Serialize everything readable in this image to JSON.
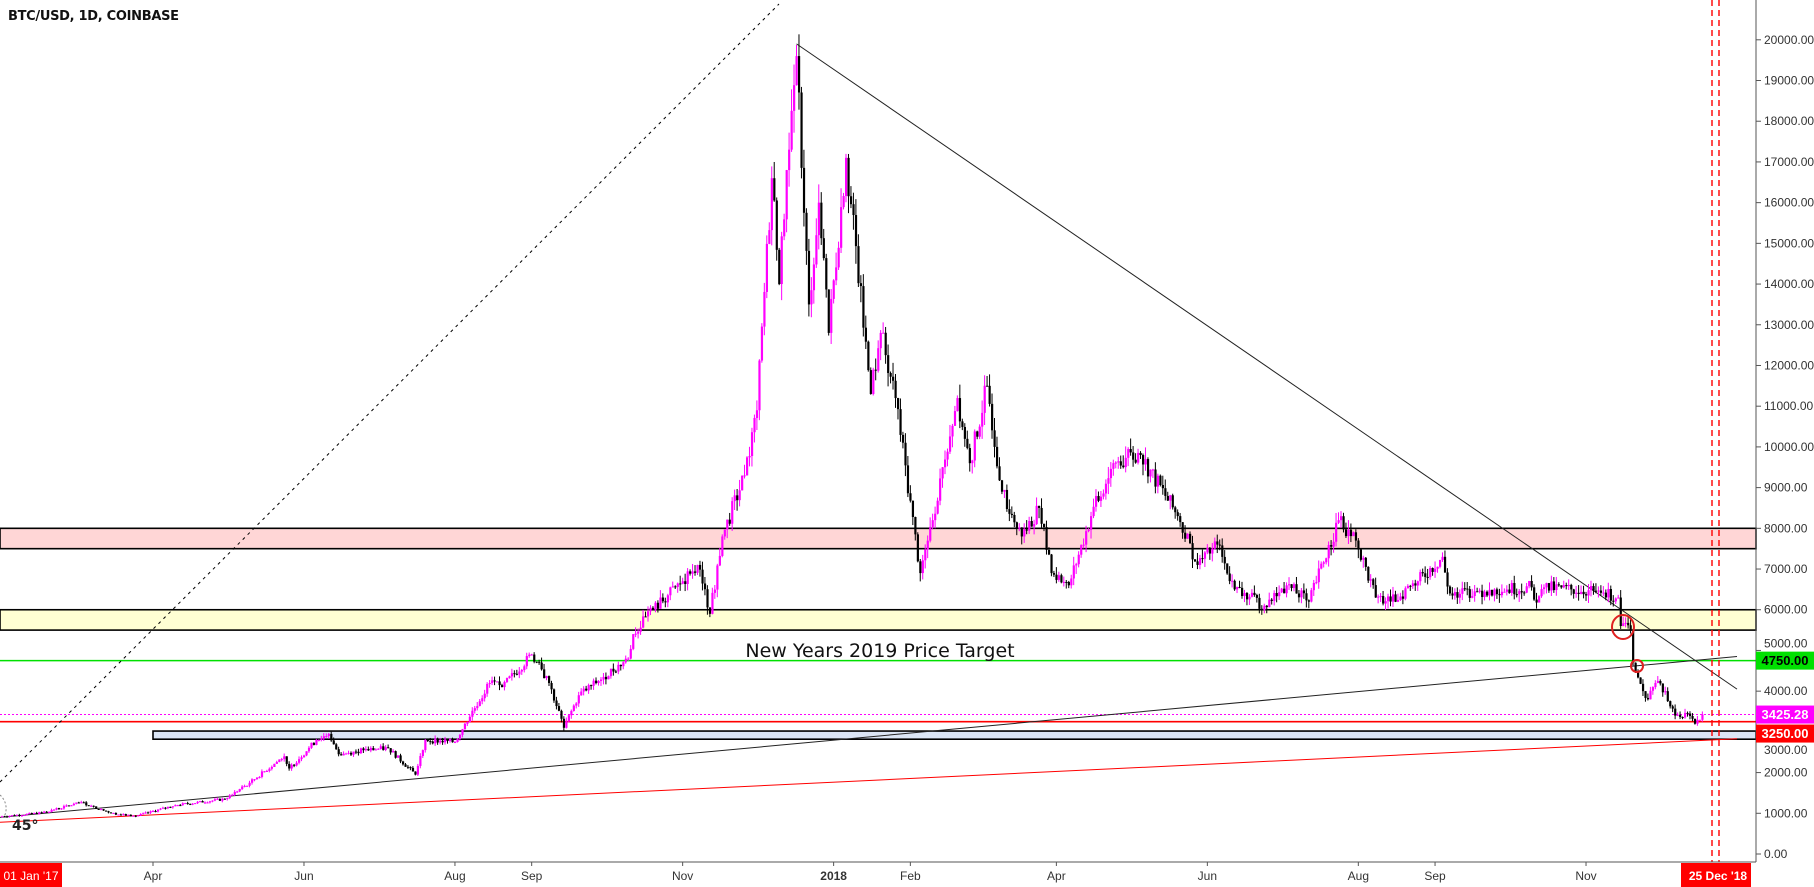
{
  "header": {
    "title": "BTC/USD, 1D, COINBASE"
  },
  "colors": {
    "up": "#ff00ff",
    "down": "#000000",
    "resistance_zone": "#ffd6d6",
    "support_zone": "#ffffd4",
    "target_line": "#00e000",
    "current_price": "#ff00ff",
    "support_line": "#ff0000",
    "base_zone": "#dbe5f5",
    "date_marker": "#ff0000"
  },
  "annotations": {
    "target_text": "New Years 2019 Price Target",
    "angle_text": "45°",
    "left_date": "01 Jan '17",
    "right_date": "25 Dec '18"
  },
  "chart_data": {
    "type": "candlestick",
    "title": "BTC/USD, 1D, COINBASE",
    "ylim": [
      0,
      20000
    ],
    "grid": false,
    "y_ticks": [
      "0.00",
      "1000.00",
      "2000.00",
      "3000.00",
      "4000.00",
      "5000.00",
      "6000.00",
      "7000.00",
      "8000.00",
      "9000.00",
      "10000.00",
      "11000.00",
      "12000.00",
      "13000.00",
      "14000.00",
      "15000.00",
      "16000.00",
      "17000.00",
      "18000.00",
      "19000.00",
      "20000.00"
    ],
    "x_ticks": [
      {
        "label": "Apr",
        "date": "2017-04-01"
      },
      {
        "label": "Jun",
        "date": "2017-06-01"
      },
      {
        "label": "Aug",
        "date": "2017-08-01"
      },
      {
        "label": "Sep",
        "date": "2017-09-01"
      },
      {
        "label": "Nov",
        "date": "2017-11-01"
      },
      {
        "label": "2018",
        "date": "2018-01-01",
        "bold": true
      },
      {
        "label": "Feb",
        "date": "2018-02-01"
      },
      {
        "label": "Apr",
        "date": "2018-04-01"
      },
      {
        "label": "Jun",
        "date": "2018-06-01"
      },
      {
        "label": "Aug",
        "date": "2018-08-01"
      },
      {
        "label": "Sep",
        "date": "2018-09-01"
      },
      {
        "label": "Nov",
        "date": "2018-11-01"
      }
    ],
    "price_labels": [
      {
        "value": 4750,
        "text": "4750.00",
        "color": "#00e000"
      },
      {
        "value": 3425.28,
        "text": "3425.28",
        "color": "#ff00ff"
      },
      {
        "value": 3250,
        "text": "3250.00",
        "color": "#ff0000"
      }
    ],
    "zones": [
      {
        "from": 7500,
        "to": 8000,
        "color": "#ffd6d6"
      },
      {
        "from": 5500,
        "to": 6000,
        "color": "#ffffd4"
      },
      {
        "from": 2820,
        "to": 3020,
        "color": "#dbe5f5",
        "start": "2017-04-01"
      }
    ],
    "trendlines": [
      {
        "name": "descending",
        "from": [
          "2017-12-17",
          19900
        ],
        "to": [
          "2019-01-01",
          4050
        ]
      },
      {
        "name": "ascending",
        "from": [
          "2017-01-29",
          900
        ],
        "to": [
          "2019-01-01",
          4850
        ]
      },
      {
        "name": "red-support",
        "from": [
          "2017-01-29",
          780
        ],
        "to": [
          "2019-01-01",
          2830
        ]
      }
    ],
    "closes": [
      [
        "2017-01-29",
        920
      ],
      [
        "2017-02-15",
        1010
      ],
      [
        "2017-03-03",
        1270
      ],
      [
        "2017-03-10",
        1100
      ],
      [
        "2017-03-18",
        970
      ],
      [
        "2017-03-25",
        930
      ],
      [
        "2017-04-10",
        1200
      ],
      [
        "2017-04-30",
        1350
      ],
      [
        "2017-05-10",
        1750
      ],
      [
        "2017-05-24",
        2400
      ],
      [
        "2017-05-26",
        2100
      ],
      [
        "2017-06-06",
        2800
      ],
      [
        "2017-06-11",
        2950
      ],
      [
        "2017-06-15",
        2450
      ],
      [
        "2017-06-25",
        2550
      ],
      [
        "2017-07-05",
        2600
      ],
      [
        "2017-07-16",
        1950
      ],
      [
        "2017-07-20",
        2800
      ],
      [
        "2017-08-01",
        2750
      ],
      [
        "2017-08-05",
        3200
      ],
      [
        "2017-08-15",
        4200
      ],
      [
        "2017-08-20",
        4100
      ],
      [
        "2017-09-01",
        4900
      ],
      [
        "2017-09-08",
        4200
      ],
      [
        "2017-09-14",
        3100
      ],
      [
        "2017-09-20",
        3900
      ],
      [
        "2017-09-30",
        4350
      ],
      [
        "2017-10-10",
        4800
      ],
      [
        "2017-10-12",
        5400
      ],
      [
        "2017-10-20",
        6000
      ],
      [
        "2017-11-01",
        6700
      ],
      [
        "2017-11-07",
        7100
      ],
      [
        "2017-11-12",
        5900
      ],
      [
        "2017-11-17",
        7800
      ],
      [
        "2017-11-26",
        9300
      ],
      [
        "2017-12-01",
        10900
      ],
      [
        "2017-12-07",
        16600
      ],
      [
        "2017-12-10",
        14000
      ],
      [
        "2017-12-13",
        16800
      ],
      [
        "2017-12-17",
        19600
      ],
      [
        "2017-12-22",
        13500
      ],
      [
        "2017-12-26",
        16000
      ],
      [
        "2017-12-30",
        12800
      ],
      [
        "2018-01-06",
        17100
      ],
      [
        "2018-01-16",
        11300
      ],
      [
        "2018-01-20",
        12800
      ],
      [
        "2018-01-26",
        11200
      ],
      [
        "2018-02-05",
        6900
      ],
      [
        "2018-02-10",
        8200
      ],
      [
        "2018-02-14",
        9500
      ],
      [
        "2018-02-20",
        11200
      ],
      [
        "2018-02-25",
        9600
      ],
      [
        "2018-03-04",
        11500
      ],
      [
        "2018-03-10",
        8900
      ],
      [
        "2018-03-18",
        7800
      ],
      [
        "2018-03-25",
        8500
      ],
      [
        "2018-03-30",
        6900
      ],
      [
        "2018-04-06",
        6600
      ],
      [
        "2018-04-15",
        8300
      ],
      [
        "2018-04-24",
        9600
      ],
      [
        "2018-05-05",
        9800
      ],
      [
        "2018-05-20",
        8300
      ],
      [
        "2018-05-28",
        7100
      ],
      [
        "2018-06-05",
        7600
      ],
      [
        "2018-06-12",
        6500
      ],
      [
        "2018-06-24",
        6100
      ],
      [
        "2018-07-03",
        6600
      ],
      [
        "2018-07-12",
        6200
      ],
      [
        "2018-07-24",
        8200
      ],
      [
        "2018-07-31",
        7700
      ],
      [
        "2018-08-08",
        6300
      ],
      [
        "2018-08-14",
        6200
      ],
      [
        "2018-08-25",
        6700
      ],
      [
        "2018-09-04",
        7300
      ],
      [
        "2018-09-07",
        6400
      ],
      [
        "2018-09-25",
        6500
      ],
      [
        "2018-10-10",
        6550
      ],
      [
        "2018-10-11",
        6250
      ],
      [
        "2018-10-15",
        6550
      ],
      [
        "2018-11-05",
        6450
      ],
      [
        "2018-11-14",
        6300
      ],
      [
        "2018-11-15",
        5600
      ],
      [
        "2018-11-19",
        5500
      ],
      [
        "2018-11-20",
        4700
      ],
      [
        "2018-11-24",
        4000
      ],
      [
        "2018-11-26",
        3800
      ],
      [
        "2018-11-29",
        4200
      ],
      [
        "2018-12-03",
        4000
      ],
      [
        "2018-12-07",
        3400
      ],
      [
        "2018-12-12",
        3450
      ],
      [
        "2018-12-15",
        3200
      ],
      [
        "2018-12-18",
        3425.28
      ]
    ]
  }
}
